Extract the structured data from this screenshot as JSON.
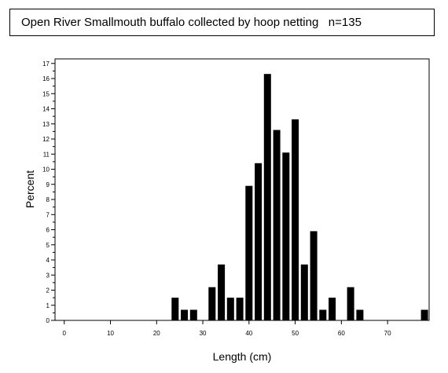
{
  "title": "Open River Smallmouth buffalo collected by hoop netting   n=135",
  "chart_data": {
    "type": "bar",
    "title": "Open River Smallmouth buffalo collected by hoop netting   n=135",
    "xlabel": "Length (cm)",
    "ylabel": "Percent",
    "xlim": [
      -2,
      79
    ],
    "ylim": [
      0,
      17.3
    ],
    "x_ticks": [
      0,
      10,
      20,
      30,
      40,
      50,
      60,
      70
    ],
    "y_ticks": [
      0,
      1,
      2,
      3,
      4,
      5,
      6,
      7,
      8,
      9,
      10,
      11,
      12,
      13,
      14,
      15,
      16,
      17
    ],
    "bin_width": 2,
    "x": [
      24,
      26,
      28,
      32,
      34,
      36,
      38,
      40,
      42,
      44,
      46,
      48,
      50,
      52,
      54,
      56,
      58,
      62,
      64,
      78
    ],
    "values": [
      1.5,
      0.7,
      0.7,
      2.2,
      3.7,
      1.5,
      1.5,
      8.9,
      10.4,
      16.3,
      12.6,
      11.1,
      13.3,
      3.7,
      5.9,
      0.7,
      1.5,
      2.2,
      0.7,
      0.7
    ],
    "grid": false,
    "bar_color": "#000000"
  }
}
